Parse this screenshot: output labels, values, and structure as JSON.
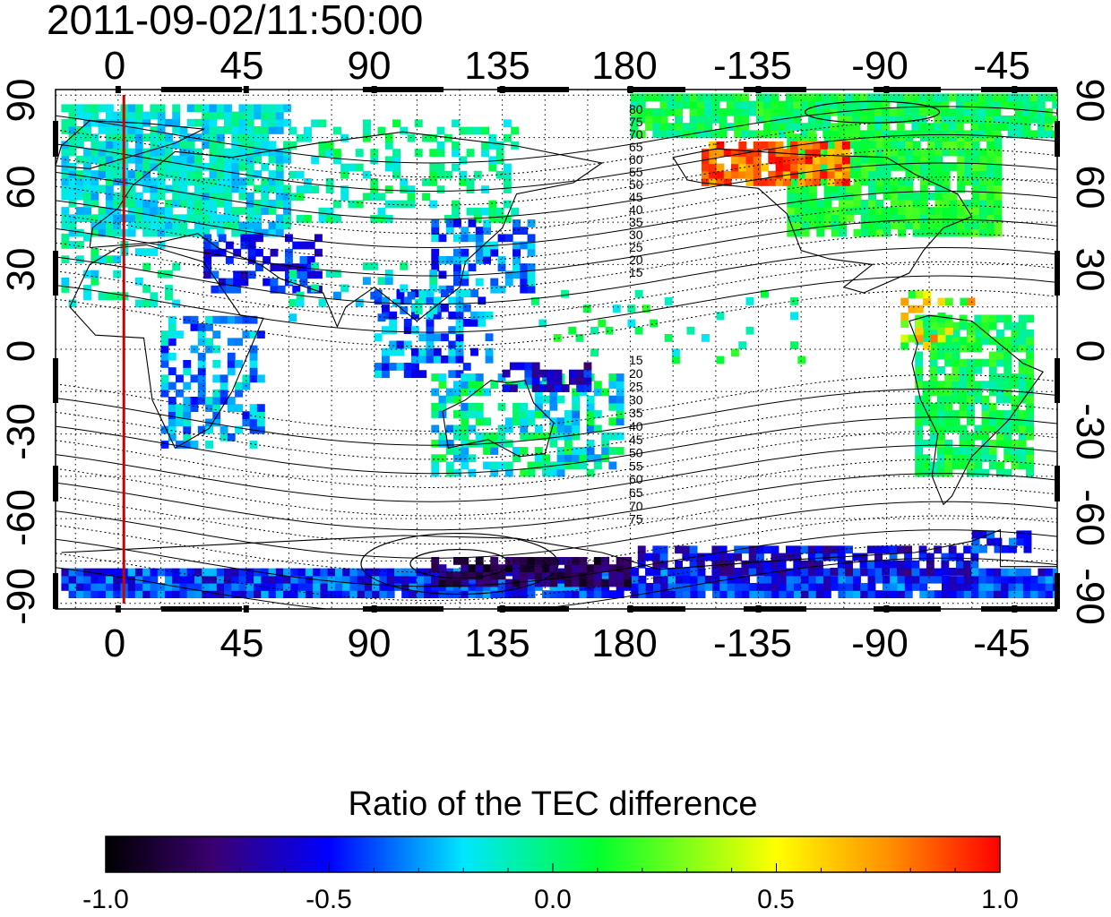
{
  "timestamp": "2011-09-02/11:50:00",
  "map": {
    "projection": "equirectangular",
    "lon_range": [
      -22,
      330
    ],
    "lat_range": [
      -92,
      92
    ],
    "top_ticks": [
      "0",
      "45",
      "90",
      "135",
      "180",
      "-135",
      "-90",
      "-45"
    ],
    "bottom_ticks": [
      "0",
      "45",
      "90",
      "135",
      "180",
      "-135",
      "-90",
      "-45"
    ],
    "top_tick_lons": [
      0,
      45,
      90,
      135,
      180,
      225,
      270,
      315
    ],
    "left_ticks": [
      "90",
      "60",
      "30",
      "0",
      "-30",
      "-60",
      "-90"
    ],
    "right_ticks": [
      "90",
      "60",
      "30",
      "0",
      "-30",
      "-60",
      "-90"
    ],
    "lat_tick_values": [
      90,
      60,
      30,
      0,
      -30,
      -60,
      -90
    ],
    "terminator_lon": 2,
    "terminator_color": "#cc0000",
    "grid": "dotted",
    "magnetic_lat_labels_north": [
      "80",
      "75",
      "70",
      "65",
      "60",
      "55",
      "50",
      "45",
      "40",
      "35",
      "30",
      "25",
      "20",
      "15"
    ],
    "magnetic_lat_labels_south": [
      "15",
      "20",
      "25",
      "30",
      "35",
      "40",
      "45",
      "50",
      "55",
      "60",
      "65",
      "70",
      "75"
    ]
  },
  "colorbar": {
    "title": "Ratio of the TEC difference",
    "ticks": [
      "-1.0",
      "-0.5",
      "0.0",
      "0.5",
      "1.0"
    ],
    "tick_values": [
      -1.0,
      -0.5,
      0.0,
      0.5,
      1.0
    ],
    "colormap": [
      "#000000",
      "#4b0082",
      "#0000ff",
      "#00ffff",
      "#00ff00",
      "#ffff00",
      "#ff8000",
      "#ff0000"
    ]
  }
}
